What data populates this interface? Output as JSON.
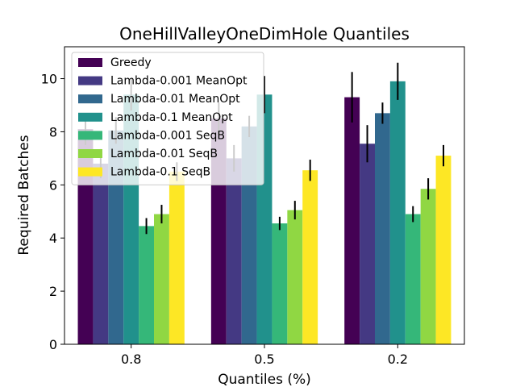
{
  "chart_data": {
    "type": "bar",
    "title": "OneHillValleyOneDimHole Quantiles",
    "xlabel": "Quantiles (%)",
    "ylabel": "Required Batches",
    "categories": [
      "0.8",
      "0.5",
      "0.2"
    ],
    "ylim": [
      0,
      11.2
    ],
    "yticks": [
      0,
      2,
      4,
      6,
      8,
      10
    ],
    "grid": false,
    "legend_position": "top-left",
    "series": [
      {
        "name": "Greedy",
        "color": "#440154",
        "values": [
          8.1,
          8.5,
          9.3
        ],
        "errors": [
          0.6,
          0.6,
          0.95
        ]
      },
      {
        "name": "Lambda-0.001 MeanOpt",
        "color": "#443983",
        "values": [
          6.8,
          7.0,
          7.55
        ],
        "errors": [
          0.55,
          0.5,
          0.7
        ]
      },
      {
        "name": "Lambda-0.01 MeanOpt",
        "color": "#31688e",
        "values": [
          8.05,
          8.2,
          8.7
        ],
        "errors": [
          0.5,
          0.4,
          0.4
        ]
      },
      {
        "name": "Lambda-0.1 MeanOpt",
        "color": "#21918c",
        "values": [
          9.4,
          9.4,
          9.9
        ],
        "errors": [
          0.6,
          0.7,
          0.7
        ]
      },
      {
        "name": "Lambda-0.001 SeqB",
        "color": "#35b779",
        "values": [
          4.45,
          4.55,
          4.9
        ],
        "errors": [
          0.3,
          0.25,
          0.3
        ]
      },
      {
        "name": "Lambda-0.01 SeqB",
        "color": "#90d743",
        "values": [
          4.9,
          5.05,
          5.85
        ],
        "errors": [
          0.35,
          0.35,
          0.4
        ]
      },
      {
        "name": "Lambda-0.1 SeqB",
        "color": "#fde725",
        "values": [
          6.5,
          6.55,
          7.1
        ],
        "errors": [
          0.35,
          0.4,
          0.4
        ]
      }
    ]
  }
}
